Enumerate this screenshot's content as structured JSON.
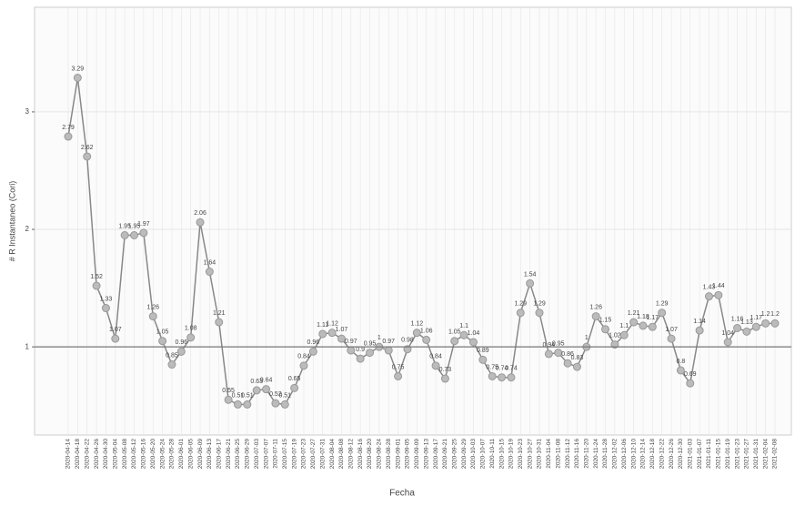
{
  "chart_data": {
    "type": "line",
    "x_label": "Fecha",
    "y_label": "# R Instantaneo (Cori)",
    "categories": [
      "2020-04-14",
      "2020-04-18",
      "2020-04-22",
      "2020-04-26",
      "2020-04-30",
      "2020-05-04",
      "2020-05-08",
      "2020-05-12",
      "2020-05-16",
      "2020-05-20",
      "2020-05-24",
      "2020-05-28",
      "2020-06-01",
      "2020-06-05",
      "2020-06-09",
      "2020-06-13",
      "2020-06-17",
      "2020-06-21",
      "2020-06-25",
      "2020-06-29",
      "2020-07-03",
      "2020-07-07",
      "2020-07-11",
      "2020-07-15",
      "2020-07-19",
      "2020-07-23",
      "2020-07-27",
      "2020-07-31",
      "2020-08-04",
      "2020-08-08",
      "2020-08-12",
      "2020-08-16",
      "2020-08-20",
      "2020-08-24",
      "2020-08-28",
      "2020-09-01",
      "2020-09-05",
      "2020-09-09",
      "2020-09-13",
      "2020-09-17",
      "2020-09-21",
      "2020-09-25",
      "2020-09-29",
      "2020-10-03",
      "2020-10-07",
      "2020-10-11",
      "2020-10-15",
      "2020-10-19",
      "2020-10-23",
      "2020-10-27",
      "2020-10-31",
      "2020-11-04",
      "2020-11-08",
      "2020-11-12",
      "2020-11-16",
      "2020-11-20",
      "2020-11-24",
      "2020-11-28",
      "2020-12-02",
      "2020-12-06",
      "2020-12-10",
      "2020-12-14",
      "2020-12-18",
      "2020-12-22",
      "2020-12-26",
      "2020-12-30",
      "2021-01-03",
      "2021-01-07",
      "2021-01-11",
      "2021-01-15",
      "2021-01-19",
      "2021-01-23",
      "2021-01-27",
      "2021-01-31",
      "2021-02-04",
      "2021-02-08"
    ],
    "series": [
      {
        "color": "#888888",
        "values": [
          2.79,
          3.29,
          2.62,
          1.52,
          1.33,
          1.07,
          1.95,
          1.95,
          1.97,
          1.26,
          1.05,
          0.85,
          0.96,
          1.08,
          2.06,
          1.64,
          1.21,
          0.55,
          0.51,
          0.51,
          0.63,
          0.64,
          0.52,
          0.51,
          0.65,
          0.84,
          0.96,
          1.11,
          1.12,
          1.07,
          0.97,
          0.9,
          0.95,
          1.0,
          0.97,
          0.75,
          0.98,
          1.12,
          1.06,
          0.84,
          0.73,
          1.05,
          1.1,
          1.04,
          0.89,
          0.75,
          0.74,
          0.74,
          1.29,
          1.54,
          1.29,
          0.94,
          0.95,
          0.86,
          0.83,
          1.0,
          1.26,
          1.15,
          1.02,
          1.1,
          1.21,
          1.18,
          1.17,
          1.29,
          1.07,
          0.8,
          0.69,
          1.14,
          1.43,
          1.44,
          1.04,
          1.16,
          1.13,
          1.17,
          1.2,
          1.2
        ]
      }
    ],
    "ylim": [
      0.25,
      3.89
    ],
    "yticks": [
      1,
      2,
      3
    ],
    "hline": 1,
    "grid": true
  }
}
